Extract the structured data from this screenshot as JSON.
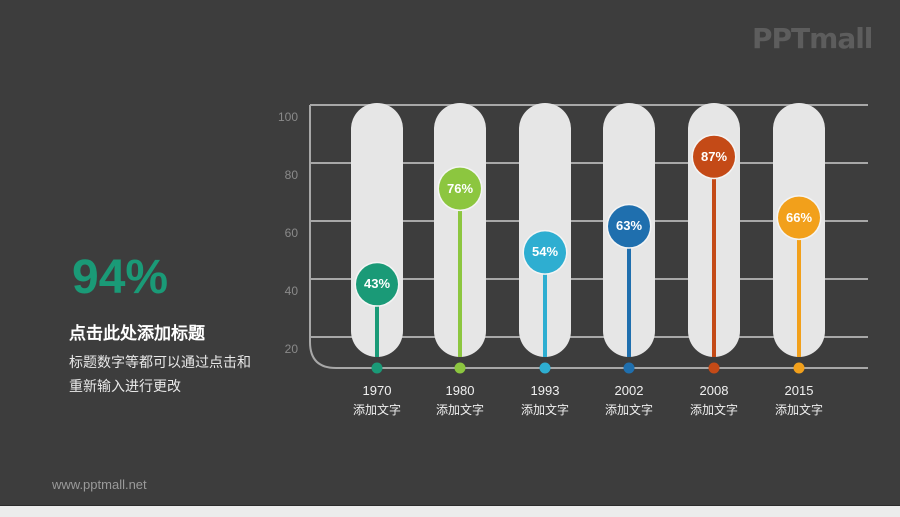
{
  "logo": {
    "text": "PPTmall"
  },
  "summary": {
    "big_value": "94%",
    "big_value_color": "#1a9a77",
    "headline": "点击此处添加标题",
    "description": "标题数字等都可以通过点击和重新输入进行更改"
  },
  "footer": {
    "url": "www.pptmall.net"
  },
  "colors": {
    "background": "#3d3d3d",
    "pill": "#e6e6e6",
    "grid": "#a8a8a8"
  },
  "chart_data": {
    "type": "bar",
    "title": "",
    "xlabel": "",
    "ylabel": "",
    "ylim": [
      0,
      100
    ],
    "yticks": [
      20,
      40,
      60,
      80,
      100
    ],
    "grid": true,
    "categories": [
      "1970",
      "1980",
      "1993",
      "2002",
      "2008",
      "2015"
    ],
    "category_sublabels": [
      "添加文字",
      "添加文字",
      "添加文字",
      "添加文字",
      "添加文字",
      "添加文字"
    ],
    "values": [
      43,
      76,
      54,
      63,
      87,
      66
    ],
    "value_labels": [
      "43%",
      "76%",
      "54%",
      "63%",
      "87%",
      "66%"
    ],
    "series_colors": [
      "#1a9a77",
      "#8cc63f",
      "#2eaed1",
      "#1f6fae",
      "#c44a17",
      "#f2a01b"
    ]
  }
}
